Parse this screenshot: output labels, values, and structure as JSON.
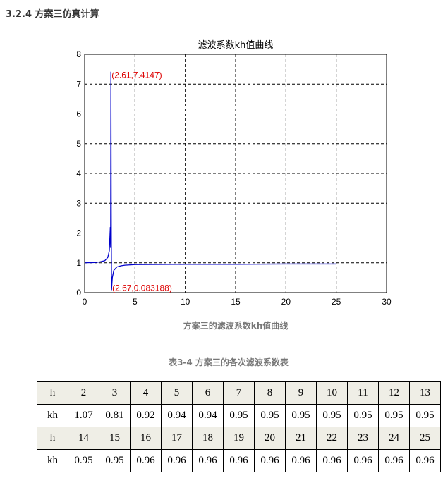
{
  "heading": "3.2.4 方案三仿真计算",
  "figure_caption": "方案三的滤波系数kh值曲线",
  "table_caption": "表3-4  方案三的各次滤波系数表",
  "table": {
    "rows": [
      {
        "label": "h",
        "values": [
          "2",
          "3",
          "4",
          "5",
          "6",
          "7",
          "8",
          "9",
          "10",
          "11",
          "12",
          "13"
        ]
      },
      {
        "label": "kh",
        "values": [
          "1.07",
          "0.81",
          "0.92",
          "0.94",
          "0.94",
          "0.95",
          "0.95",
          "0.95",
          "0.95",
          "0.95",
          "0.95",
          "0.95"
        ]
      },
      {
        "label": "h",
        "values": [
          "14",
          "15",
          "16",
          "17",
          "18",
          "19",
          "20",
          "21",
          "22",
          "23",
          "24",
          "25"
        ]
      },
      {
        "label": "kh",
        "values": [
          "0.95",
          "0.95",
          "0.96",
          "0.96",
          "0.96",
          "0.96",
          "0.96",
          "0.96",
          "0.96",
          "0.96",
          "0.96",
          "0.96"
        ]
      }
    ]
  },
  "chart_data": {
    "type": "line",
    "title": "滤波系数kh值曲线",
    "xlim": [
      0,
      30
    ],
    "ylim": [
      0,
      8
    ],
    "xticks": [
      "0",
      "5",
      "10",
      "15",
      "20",
      "25",
      "30"
    ],
    "yticks": [
      "0",
      "1",
      "2",
      "3",
      "4",
      "5",
      "6",
      "7",
      "8"
    ],
    "grid": true,
    "line_color": "#0000cc",
    "annotation_color": "#dd0000",
    "x": [
      0,
      1,
      1.5,
      2,
      2.3,
      2.45,
      2.55,
      2.58,
      2.61,
      2.64,
      2.67,
      2.75,
      2.9,
      3.2,
      3.6,
      4,
      5,
      10,
      15,
      20,
      25
    ],
    "y": [
      1,
      1.01,
      1.03,
      1.07,
      1.18,
      1.4,
      2.2,
      1.5,
      7.4147,
      3,
      0.083188,
      0.5,
      0.75,
      0.86,
      0.9,
      0.92,
      0.94,
      0.95,
      0.95,
      0.96,
      0.96
    ],
    "annotations": [
      {
        "x": 2.61,
        "y": 7.4147,
        "text": "(2.61,7.4147)"
      },
      {
        "x": 2.67,
        "y": 0.083188,
        "text": "(2.67,0.083188)"
      }
    ]
  }
}
